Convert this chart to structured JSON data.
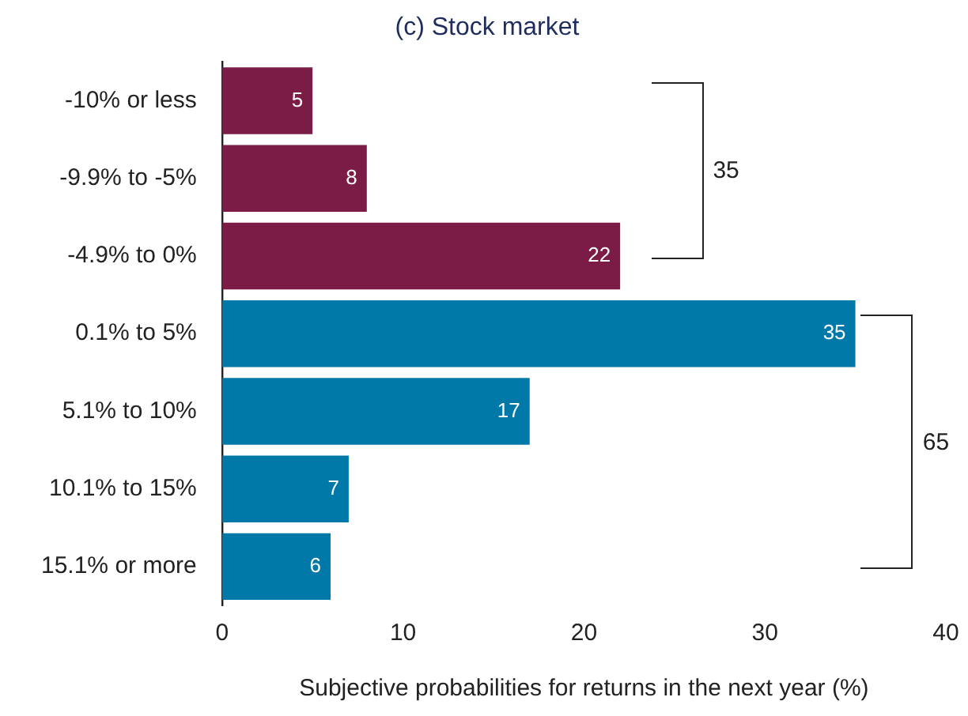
{
  "chart_data": {
    "type": "bar",
    "orientation": "horizontal",
    "title": "(c) Stock market",
    "xlabel": "Subjective probabilities for returns in the next year (%)",
    "categories": [
      "-10% or less",
      "-9.9% to -5%",
      "-4.9% to 0%",
      "0.1% to 5%",
      "5.1% to 10%",
      "10.1% to 15%",
      "15.1% or more"
    ],
    "values": [
      5,
      8,
      22,
      35,
      17,
      7,
      6
    ],
    "colors": [
      "#7a1c46",
      "#7a1c46",
      "#7a1c46",
      "#0078a8",
      "#0078a8",
      "#0078a8",
      "#0078a8"
    ],
    "xlim": [
      0,
      40
    ],
    "xticks": [
      0,
      10,
      20,
      30,
      40
    ],
    "grid": false,
    "legend": false,
    "data_labels": true,
    "annotations": [
      "35",
      "65"
    ]
  }
}
